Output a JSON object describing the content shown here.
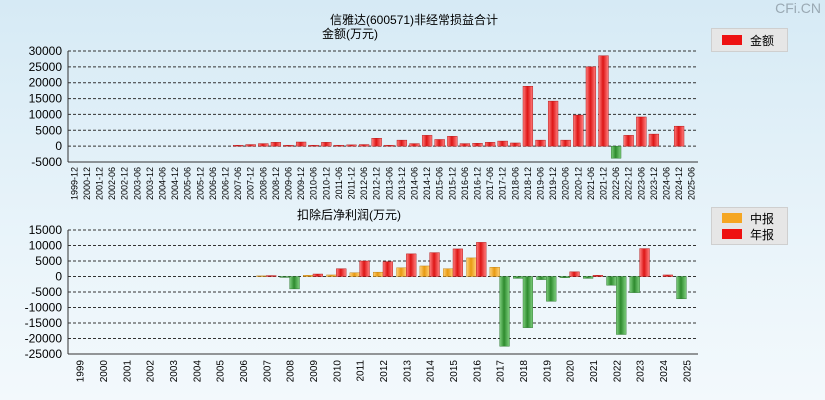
{
  "watermark": "CFi.CN",
  "chart_data": [
    {
      "type": "bar",
      "title": "信雅达(600571)非经常损益合计",
      "ylabel": "金额(万元)",
      "ylim": [
        -5000,
        30000
      ],
      "yticks": [
        30000,
        25000,
        20000,
        15000,
        10000,
        5000,
        0,
        -5000
      ],
      "grid": true,
      "legend_position": "top-right",
      "series": [
        {
          "name": "金额",
          "color": "#ee1111"
        }
      ],
      "categories": [
        "1999-12",
        "2000-12",
        "2001-12",
        "2002-06",
        "2002-12",
        "2003-06",
        "2003-12",
        "2004-06",
        "2004-12",
        "2005-06",
        "2005-12",
        "2006-06",
        "2006-12",
        "2007-06",
        "2007-12",
        "2008-06",
        "2008-12",
        "2009-06",
        "2009-12",
        "2010-06",
        "2010-12",
        "2011-06",
        "2011-12",
        "2012-06",
        "2012-12",
        "2013-06",
        "2013-12",
        "2014-06",
        "2014-12",
        "2015-06",
        "2015-12",
        "2016-06",
        "2016-12",
        "2017-06",
        "2017-12",
        "2018-06",
        "2018-12",
        "2019-06",
        "2019-12",
        "2020-06",
        "2020-12",
        "2021-06",
        "2021-12",
        "2022-06",
        "2022-12",
        "2023-06",
        "2023-12",
        "2024-06",
        "2024-12",
        "2025-06"
      ],
      "values": [
        0,
        0,
        0,
        0,
        0,
        0,
        0,
        0,
        0,
        0,
        0,
        0,
        0,
        300,
        500,
        800,
        1200,
        300,
        1300,
        300,
        1200,
        300,
        400,
        500,
        2500,
        300,
        1900,
        800,
        3400,
        2100,
        3100,
        800,
        900,
        1200,
        1600,
        1000,
        18900,
        1900,
        14200,
        1900,
        9800,
        25000,
        28500,
        -3800,
        3400,
        9200,
        3800,
        0,
        6300,
        0
      ]
    },
    {
      "type": "bar",
      "title": "扣除后净利润(万元)",
      "ylim": [
        -25000,
        15000
      ],
      "yticks": [
        15000,
        10000,
        5000,
        0,
        -5000,
        -10000,
        -15000,
        -20000,
        -25000
      ],
      "grid": true,
      "legend_position": "top-right",
      "categories": [
        "1999",
        "2000",
        "2001",
        "2002",
        "2003",
        "2004",
        "2005",
        "2006",
        "2007",
        "2008",
        "2009",
        "2010",
        "2011",
        "2012",
        "2013",
        "2014",
        "2015",
        "2016",
        "2017",
        "2018",
        "2019",
        "2020",
        "2021",
        "2022",
        "2023",
        "2024",
        "2025"
      ],
      "series": [
        {
          "name": "中报",
          "color": "#f5a623",
          "values": [
            0,
            0,
            0,
            0,
            0,
            0,
            0,
            0,
            200,
            -300,
            400,
            500,
            1200,
            1400,
            2800,
            3400,
            2500,
            6000,
            3000,
            -600,
            -1000,
            -400,
            -600,
            -2800,
            -5200,
            0,
            -7200
          ]
        },
        {
          "name": "年报",
          "color": "#ee1111",
          "values": [
            0,
            0,
            0,
            0,
            0,
            0,
            0,
            0,
            300,
            -4000,
            800,
            2500,
            5000,
            4800,
            7300,
            7700,
            8900,
            11000,
            -22500,
            -16500,
            -8000,
            1500,
            400,
            -18700,
            9000,
            500,
            0
          ]
        }
      ],
      "negative_color": "#3d9a3d"
    }
  ]
}
